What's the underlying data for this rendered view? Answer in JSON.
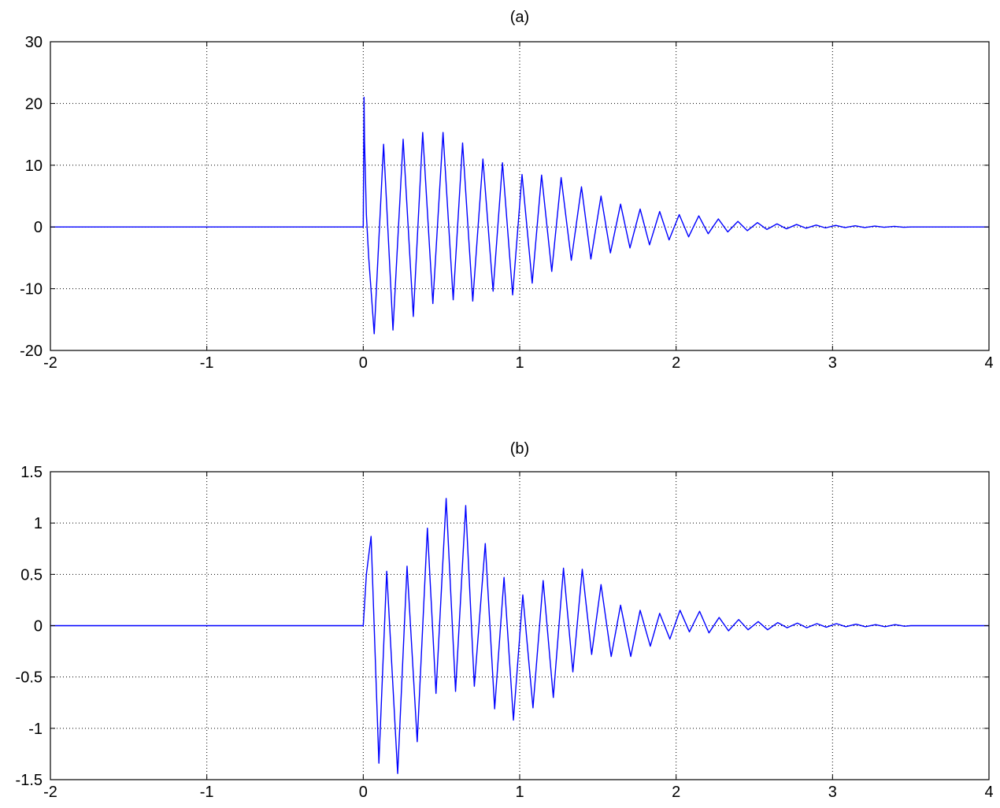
{
  "chart_data": [
    {
      "type": "line",
      "title": "(a)",
      "xlim": [
        -2,
        4
      ],
      "ylim": [
        -20,
        30
      ],
      "x_ticks": [
        -2,
        -1,
        0,
        1,
        2,
        3,
        4
      ],
      "y_ticks": [
        -20,
        -10,
        0,
        10,
        20,
        30
      ],
      "grid": true,
      "line_color": "#0000ff",
      "series": [
        {
          "x": [
            -2,
            0,
            0.005,
            0.008,
            0.02,
            0.035,
            0.07,
            0.13,
            0.19,
            0.255,
            0.32,
            0.38,
            0.445,
            0.51,
            0.575,
            0.635,
            0.7,
            0.765,
            0.83,
            0.89,
            0.955,
            1.015,
            1.08,
            1.14,
            1.205,
            1.265,
            1.33,
            1.395,
            1.455,
            1.52,
            1.58,
            1.645,
            1.705,
            1.77,
            1.83,
            1.895,
            1.955,
            2.02,
            2.08,
            2.145,
            2.205,
            2.27,
            2.33,
            2.395,
            2.455,
            2.52,
            2.58,
            2.645,
            2.705,
            2.77,
            2.83,
            2.895,
            2.955,
            3.02,
            3.08,
            3.145,
            3.205,
            3.27,
            3.33,
            3.395,
            3.455,
            3.5,
            4
          ],
          "y": [
            0,
            0,
            21,
            14,
            2,
            -5,
            -17.3,
            13.4,
            -16.7,
            14.2,
            -14.5,
            15.3,
            -12.4,
            15.3,
            -11.8,
            13.6,
            -12.0,
            11.0,
            -10.4,
            10.4,
            -11.0,
            8.5,
            -9.1,
            8.4,
            -7.2,
            8.0,
            -5.4,
            6.5,
            -5.2,
            5.0,
            -4.2,
            3.7,
            -3.4,
            2.9,
            -2.9,
            2.5,
            -2.1,
            2.0,
            -1.6,
            1.8,
            -1.1,
            1.3,
            -0.8,
            0.9,
            -0.6,
            0.7,
            -0.4,
            0.5,
            -0.3,
            0.4,
            -0.2,
            0.3,
            -0.15,
            0.25,
            -0.1,
            0.2,
            -0.1,
            0.15,
            -0.05,
            0.1,
            -0.05,
            0,
            0
          ]
        }
      ]
    },
    {
      "type": "line",
      "title": "(b)",
      "xlim": [
        -2,
        4
      ],
      "ylim": [
        -1.5,
        1.5
      ],
      "x_ticks": [
        -2,
        -1,
        0,
        1,
        2,
        3,
        4
      ],
      "y_ticks": [
        -1.5,
        -1,
        -0.5,
        0,
        0.5,
        1,
        1.5
      ],
      "grid": true,
      "line_color": "#0000ff",
      "series": [
        {
          "x": [
            -2,
            0,
            0.02,
            0.05,
            0.1,
            0.15,
            0.22,
            0.28,
            0.345,
            0.41,
            0.465,
            0.53,
            0.59,
            0.655,
            0.71,
            0.78,
            0.84,
            0.9,
            0.96,
            1.02,
            1.085,
            1.15,
            1.215,
            1.28,
            1.34,
            1.4,
            1.46,
            1.52,
            1.585,
            1.645,
            1.71,
            1.77,
            1.835,
            1.895,
            1.96,
            2.025,
            2.085,
            2.15,
            2.21,
            2.275,
            2.335,
            2.4,
            2.46,
            2.525,
            2.585,
            2.65,
            2.71,
            2.775,
            2.835,
            2.9,
            2.96,
            3.025,
            3.085,
            3.15,
            3.21,
            3.275,
            3.335,
            3.4,
            3.46,
            3.5,
            4
          ],
          "y": [
            0,
            0,
            0.5,
            0.87,
            -1.34,
            0.53,
            -1.44,
            0.58,
            -1.13,
            0.95,
            -0.66,
            1.24,
            -0.64,
            1.17,
            -0.59,
            0.8,
            -0.81,
            0.47,
            -0.92,
            0.3,
            -0.8,
            0.44,
            -0.7,
            0.56,
            -0.45,
            0.55,
            -0.28,
            0.4,
            -0.3,
            0.2,
            -0.3,
            0.15,
            -0.2,
            0.12,
            -0.13,
            0.15,
            -0.06,
            0.14,
            -0.07,
            0.08,
            -0.05,
            0.06,
            -0.04,
            0.04,
            -0.04,
            0.03,
            -0.02,
            0.025,
            -0.02,
            0.02,
            -0.015,
            0.02,
            -0.01,
            0.015,
            -0.01,
            0.01,
            -0.01,
            0.01,
            -0.005,
            0,
            0
          ]
        }
      ]
    }
  ]
}
